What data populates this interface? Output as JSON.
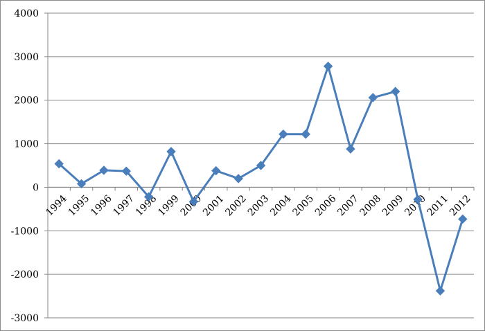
{
  "chart_data": {
    "type": "line",
    "title": "",
    "xlabel": "",
    "ylabel": "",
    "x": [
      "1994",
      "1995",
      "1996",
      "1997",
      "1998",
      "1999",
      "2000",
      "2001",
      "2002",
      "2003",
      "2004",
      "2005",
      "2006",
      "2007",
      "2008",
      "2009",
      "2010",
      "2011",
      "2012"
    ],
    "series": [
      {
        "values": [
          540,
          80,
          390,
          370,
          -220,
          820,
          -330,
          380,
          200,
          500,
          1220,
          1220,
          2780,
          880,
          2060,
          2200,
          -280,
          -2380,
          -730
        ],
        "color": "#4a7ebb",
        "marker": "diamond"
      }
    ],
    "ylim": [
      -3000,
      4000
    ],
    "yticks": [
      "-3000",
      "-2000",
      "-1000",
      "0",
      "1000",
      "2000",
      "3000",
      "4000"
    ],
    "ytick_values": [
      -3000,
      -2000,
      -1000,
      0,
      1000,
      2000,
      3000,
      4000
    ],
    "grid": true,
    "legend": "none",
    "grid_color": "#868686",
    "axis_color": "#868686"
  }
}
